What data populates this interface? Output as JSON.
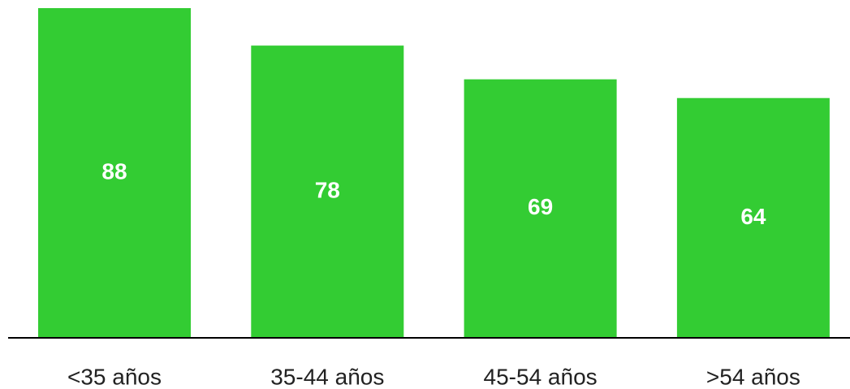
{
  "chart_data": {
    "type": "bar",
    "categories": [
      "<35 años",
      "35-44 años",
      "45-54 años",
      ">54 años"
    ],
    "values": [
      88,
      78,
      69,
      64
    ],
    "color": "#33cc33"
  }
}
